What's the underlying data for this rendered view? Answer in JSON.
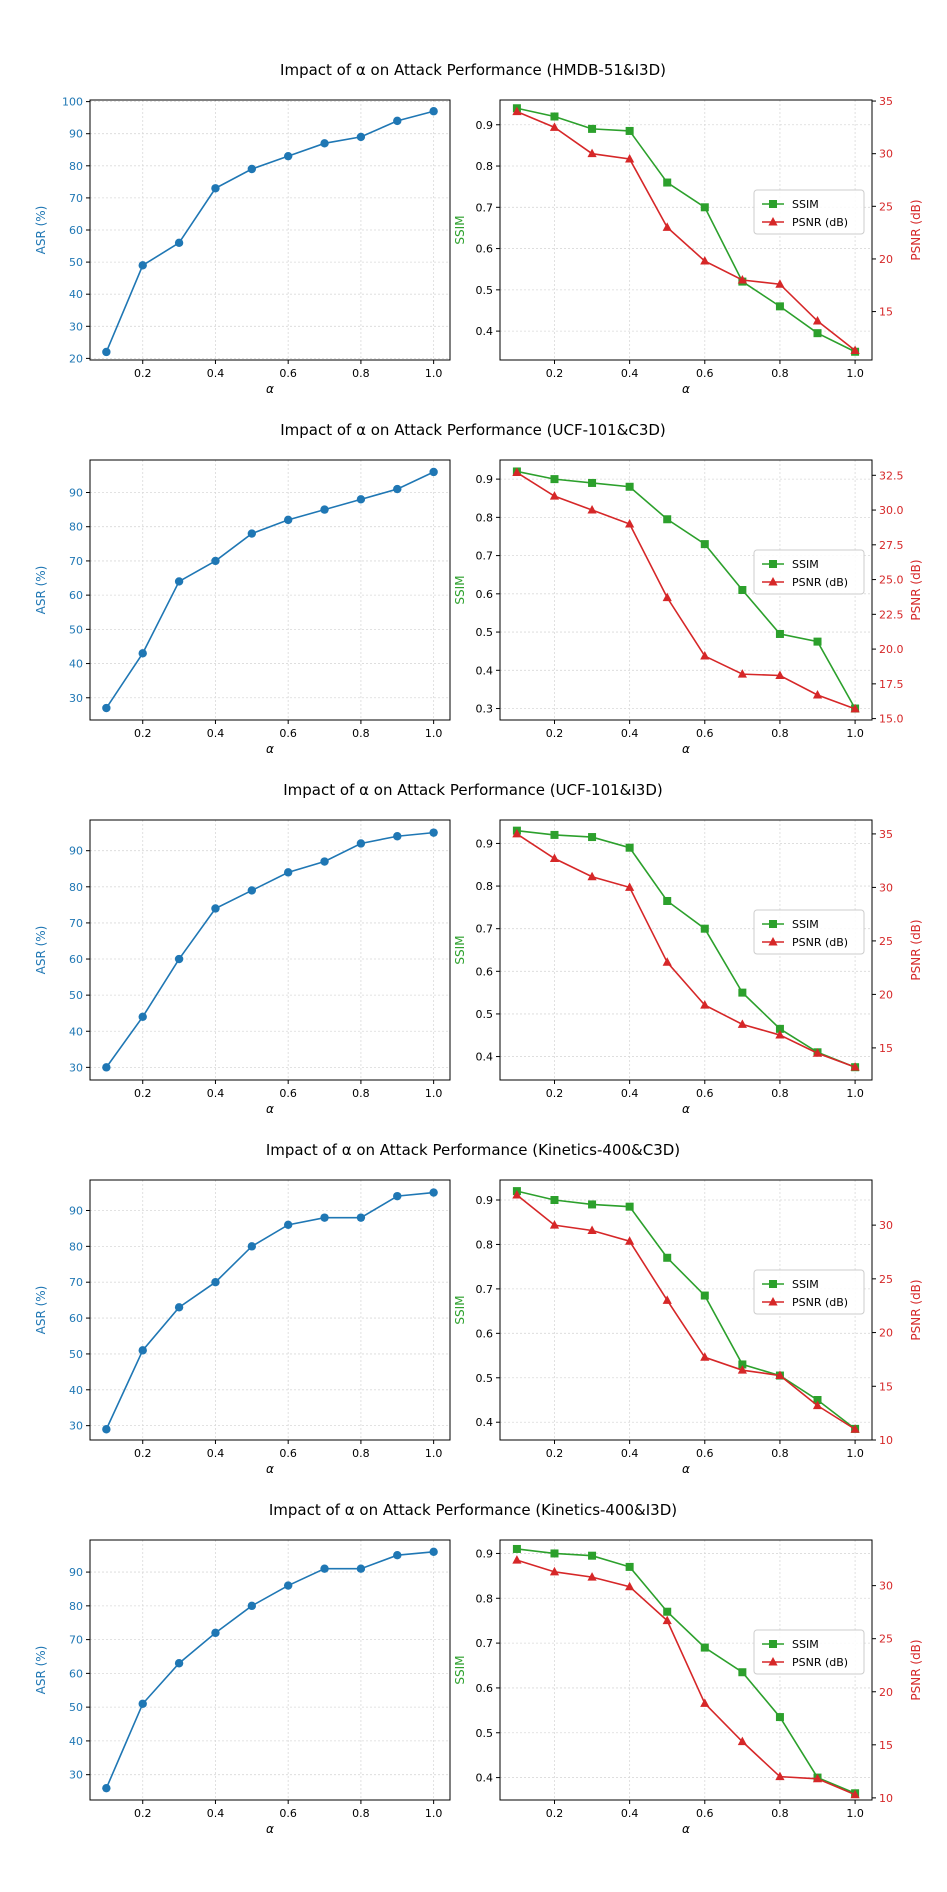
{
  "colors": {
    "asr": "#1f77b4",
    "ssim": "#2ca02c",
    "psnr": "#d62728",
    "grid": "#d9d9d9",
    "axis": "#000000"
  },
  "chart_data": [
    {
      "type": "line",
      "title": "Impact of α on Attack Performance (HMDB-51&I3D)",
      "asr": {
        "xlabel": "α",
        "ylabel": "ASR (%)",
        "x": [
          0.1,
          0.2,
          0.3,
          0.4,
          0.5,
          0.6,
          0.7,
          0.8,
          0.9,
          1.0
        ],
        "values": [
          22,
          49,
          56,
          73,
          79,
          83,
          87,
          89,
          94,
          97
        ],
        "xlim": [
          0.055,
          1.045
        ],
        "ylim": [
          19.5,
          100.5
        ],
        "xticks": [
          "0.2",
          "0.4",
          "0.6",
          "0.8",
          "1.0"
        ],
        "yticks": [
          "20",
          "30",
          "40",
          "50",
          "60",
          "70",
          "80",
          "90",
          "100"
        ]
      },
      "quality": {
        "xlabel": "α",
        "ylabel_left": "SSIM",
        "ylabel_right": "PSNR (dB)",
        "x": [
          0.1,
          0.2,
          0.3,
          0.4,
          0.5,
          0.6,
          0.7,
          0.8,
          0.9,
          1.0
        ],
        "ssim": [
          0.94,
          0.92,
          0.89,
          0.885,
          0.76,
          0.7,
          0.52,
          0.46,
          0.395,
          0.35
        ],
        "psnr": [
          34,
          32.5,
          30,
          29.5,
          23,
          19.8,
          18,
          17.6,
          14.1,
          11.3
        ],
        "xlim": [
          0.055,
          1.045
        ],
        "ylim_left": [
          0.33,
          0.96
        ],
        "ylim_right": [
          10.4,
          35.1
        ],
        "xticks": [
          "0.2",
          "0.4",
          "0.6",
          "0.8",
          "1.0"
        ],
        "yticks_left": [
          "0.4",
          "0.5",
          "0.6",
          "0.7",
          "0.8",
          "0.9"
        ],
        "yticks_right": [
          "15",
          "20",
          "25",
          "30",
          "35"
        ],
        "legend": [
          "SSIM",
          "PSNR (dB)"
        ],
        "legend_position": "center-right"
      }
    },
    {
      "type": "line",
      "title": "Impact of α on Attack Performance (UCF-101&C3D)",
      "asr": {
        "xlabel": "α",
        "ylabel": "ASR (%)",
        "x": [
          0.1,
          0.2,
          0.3,
          0.4,
          0.5,
          0.6,
          0.7,
          0.8,
          0.9,
          1.0
        ],
        "values": [
          27,
          43,
          64,
          70,
          78,
          82,
          85,
          88,
          91,
          96
        ],
        "xlim": [
          0.055,
          1.045
        ],
        "ylim": [
          23.5,
          99.5
        ],
        "xticks": [
          "0.2",
          "0.4",
          "0.6",
          "0.8",
          "1.0"
        ],
        "yticks": [
          "30",
          "40",
          "50",
          "60",
          "70",
          "80",
          "90"
        ]
      },
      "quality": {
        "xlabel": "α",
        "ylabel_left": "SSIM",
        "ylabel_right": "PSNR (dB)",
        "x": [
          0.1,
          0.2,
          0.3,
          0.4,
          0.5,
          0.6,
          0.7,
          0.8,
          0.9,
          1.0
        ],
        "ssim": [
          0.92,
          0.9,
          0.89,
          0.88,
          0.795,
          0.73,
          0.61,
          0.495,
          0.475,
          0.3
        ],
        "psnr": [
          32.7,
          31,
          30,
          29,
          23.7,
          19.5,
          18.2,
          18.1,
          16.7,
          15.7
        ],
        "xlim": [
          0.055,
          1.045
        ],
        "ylim_left": [
          0.27,
          0.95
        ],
        "ylim_right": [
          14.9,
          33.6
        ],
        "xticks": [
          "0.2",
          "0.4",
          "0.6",
          "0.8",
          "1.0"
        ],
        "yticks_left": [
          "0.3",
          "0.4",
          "0.5",
          "0.6",
          "0.7",
          "0.8",
          "0.9"
        ],
        "yticks_right": [
          "15.0",
          "17.5",
          "20.0",
          "22.5",
          "25.0",
          "27.5",
          "30.0",
          "32.5"
        ],
        "legend": [
          "SSIM",
          "PSNR (dB)"
        ],
        "legend_position": "center-right"
      }
    },
    {
      "type": "line",
      "title": "Impact of α on Attack Performance (UCF-101&I3D)",
      "asr": {
        "xlabel": "α",
        "ylabel": "ASR (%)",
        "x": [
          0.1,
          0.2,
          0.3,
          0.4,
          0.5,
          0.6,
          0.7,
          0.8,
          0.9,
          1.0
        ],
        "values": [
          30,
          44,
          60,
          74,
          79,
          84,
          87,
          92,
          94,
          95
        ],
        "xlim": [
          0.055,
          1.045
        ],
        "ylim": [
          26.5,
          98.5
        ],
        "xticks": [
          "0.2",
          "0.4",
          "0.6",
          "0.8",
          "1.0"
        ],
        "yticks": [
          "30",
          "40",
          "50",
          "60",
          "70",
          "80",
          "90"
        ]
      },
      "quality": {
        "xlabel": "α",
        "ylabel_left": "SSIM",
        "ylabel_right": "PSNR (dB)",
        "x": [
          0.1,
          0.2,
          0.3,
          0.4,
          0.5,
          0.6,
          0.7,
          0.8,
          0.9,
          1.0
        ],
        "ssim": [
          0.93,
          0.92,
          0.915,
          0.89,
          0.765,
          0.7,
          0.55,
          0.465,
          0.41,
          0.375
        ],
        "psnr": [
          35,
          32.7,
          31,
          30,
          23,
          19,
          17.2,
          16.2,
          14.5,
          13.2
        ],
        "xlim": [
          0.055,
          1.045
        ],
        "ylim_left": [
          0.345,
          0.955
        ],
        "ylim_right": [
          12.0,
          36.3
        ],
        "xticks": [
          "0.2",
          "0.4",
          "0.6",
          "0.8",
          "1.0"
        ],
        "yticks_left": [
          "0.4",
          "0.5",
          "0.6",
          "0.7",
          "0.8",
          "0.9"
        ],
        "yticks_right": [
          "15",
          "20",
          "25",
          "30",
          "35"
        ],
        "legend": [
          "SSIM",
          "PSNR (dB)"
        ],
        "legend_position": "center-right"
      }
    },
    {
      "type": "line",
      "title": "Impact of α on Attack Performance (Kinetics-400&C3D)",
      "asr": {
        "xlabel": "α",
        "ylabel": "ASR (%)",
        "x": [
          0.1,
          0.2,
          0.3,
          0.4,
          0.5,
          0.6,
          0.7,
          0.8,
          0.9,
          1.0
        ],
        "values": [
          29,
          51,
          63,
          70,
          80,
          86,
          88,
          88,
          94,
          95
        ],
        "xlim": [
          0.055,
          1.045
        ],
        "ylim": [
          26.0,
          98.5
        ],
        "xticks": [
          "0.2",
          "0.4",
          "0.6",
          "0.8",
          "1.0"
        ],
        "yticks": [
          "30",
          "40",
          "50",
          "60",
          "70",
          "80",
          "90"
        ]
      },
      "quality": {
        "xlabel": "α",
        "ylabel_left": "SSIM",
        "ylabel_right": "PSNR (dB)",
        "x": [
          0.1,
          0.2,
          0.3,
          0.4,
          0.5,
          0.6,
          0.7,
          0.8,
          0.9,
          1.0
        ],
        "ssim": [
          0.92,
          0.9,
          0.89,
          0.885,
          0.77,
          0.685,
          0.53,
          0.505,
          0.45,
          0.385
        ],
        "psnr": [
          32.8,
          30,
          29.5,
          28.5,
          23,
          17.7,
          16.5,
          16,
          13.2,
          11
        ],
        "xlim": [
          0.055,
          1.045
        ],
        "ylim_left": [
          0.36,
          0.945
        ],
        "ylim_right": [
          10.0,
          34.2
        ],
        "xticks": [
          "0.2",
          "0.4",
          "0.6",
          "0.8",
          "1.0"
        ],
        "yticks_left": [
          "0.4",
          "0.5",
          "0.6",
          "0.7",
          "0.8",
          "0.9"
        ],
        "yticks_right": [
          "10",
          "15",
          "20",
          "25",
          "30"
        ],
        "legend": [
          "SSIM",
          "PSNR (dB)"
        ],
        "legend_position": "center-right"
      }
    },
    {
      "type": "line",
      "title": "Impact of α on Attack Performance (Kinetics-400&I3D)",
      "asr": {
        "xlabel": "α",
        "ylabel": "ASR (%)",
        "x": [
          0.1,
          0.2,
          0.3,
          0.4,
          0.5,
          0.6,
          0.7,
          0.8,
          0.9,
          1.0
        ],
        "values": [
          26,
          51,
          63,
          72,
          80,
          86,
          91,
          91,
          95,
          96
        ],
        "xlim": [
          0.055,
          1.045
        ],
        "ylim": [
          22.5,
          99.5
        ],
        "xticks": [
          "0.2",
          "0.4",
          "0.6",
          "0.8",
          "1.0"
        ],
        "yticks": [
          "30",
          "40",
          "50",
          "60",
          "70",
          "80",
          "90"
        ]
      },
      "quality": {
        "xlabel": "α",
        "ylabel_left": "SSIM",
        "ylabel_right": "PSNR (dB)",
        "x": [
          0.1,
          0.2,
          0.3,
          0.4,
          0.5,
          0.6,
          0.7,
          0.8,
          0.9,
          1.0
        ],
        "ssim": [
          0.91,
          0.9,
          0.895,
          0.87,
          0.77,
          0.69,
          0.635,
          0.535,
          0.4,
          0.365
        ],
        "psnr": [
          32.4,
          31.3,
          30.8,
          29.9,
          26.7,
          18.9,
          15.3,
          12,
          11.8,
          10.3
        ],
        "xlim": [
          0.055,
          1.045
        ],
        "ylim_left": [
          0.35,
          0.93
        ],
        "ylim_right": [
          9.8,
          34.3
        ],
        "xticks": [
          "0.2",
          "0.4",
          "0.6",
          "0.8",
          "1.0"
        ],
        "yticks_left": [
          "0.4",
          "0.5",
          "0.6",
          "0.7",
          "0.8",
          "0.9"
        ],
        "yticks_right": [
          "10",
          "15",
          "20",
          "25",
          "30"
        ],
        "legend": [
          "SSIM",
          "PSNR (dB)"
        ],
        "legend_position": "center-right"
      }
    }
  ]
}
